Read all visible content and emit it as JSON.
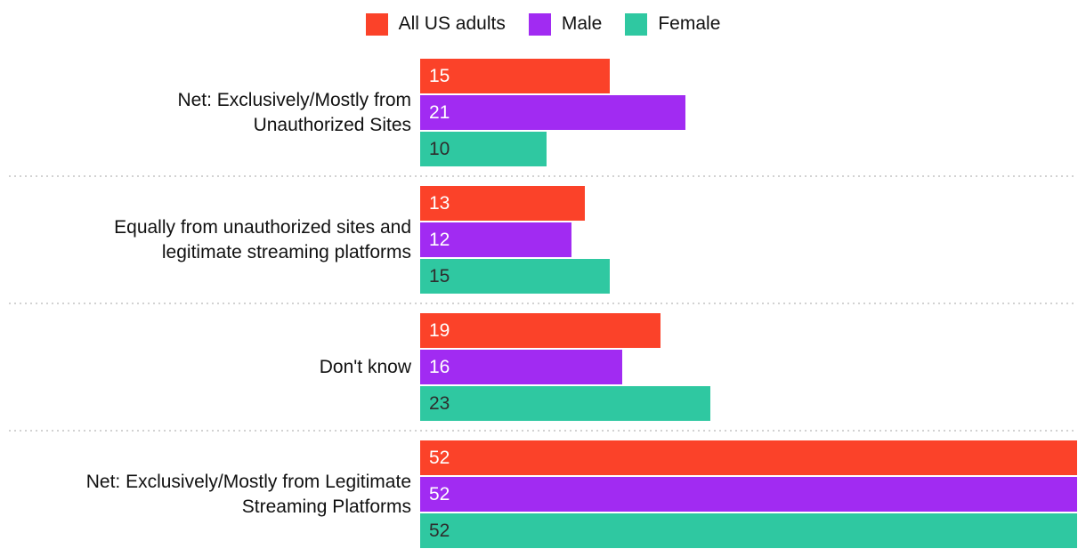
{
  "chart_data": {
    "type": "bar",
    "orientation": "horizontal",
    "title": "",
    "categories": [
      "Net: Exclusively/Mostly from Unauthorized Sites",
      "Equally from unauthorized sites and legitimate streaming platforms",
      "Don't know",
      "Net: Exclusively/Mostly from Legitimate Streaming Platforms"
    ],
    "categories_lines": [
      [
        "Net: Exclusively/Mostly from",
        "Unauthorized Sites"
      ],
      [
        "Equally from unauthorized sites and",
        "legitimate streaming platforms"
      ],
      [
        "Don't know"
      ],
      [
        "Net: Exclusively/Mostly from Legitimate",
        "Streaming Platforms"
      ]
    ],
    "series": [
      {
        "name": "All US adults",
        "color": "#fb4229",
        "value_label_color": "#ffffff",
        "values": [
          15,
          13,
          19,
          52
        ]
      },
      {
        "name": "Male",
        "color": "#a12bf2",
        "value_label_color": "#ffffff",
        "values": [
          21,
          12,
          16,
          52
        ]
      },
      {
        "name": "Female",
        "color": "#2fc8a1",
        "value_label_color": "#2e2e2e",
        "values": [
          10,
          15,
          23,
          52
        ]
      }
    ],
    "xlim": [
      0,
      52
    ],
    "value_labels": "inside-start",
    "legend_position": "top",
    "grid": false,
    "separator_style": "dotted",
    "separator_color": "#d2d2d2",
    "background": "#ffffff",
    "text_color": "#111111"
  }
}
